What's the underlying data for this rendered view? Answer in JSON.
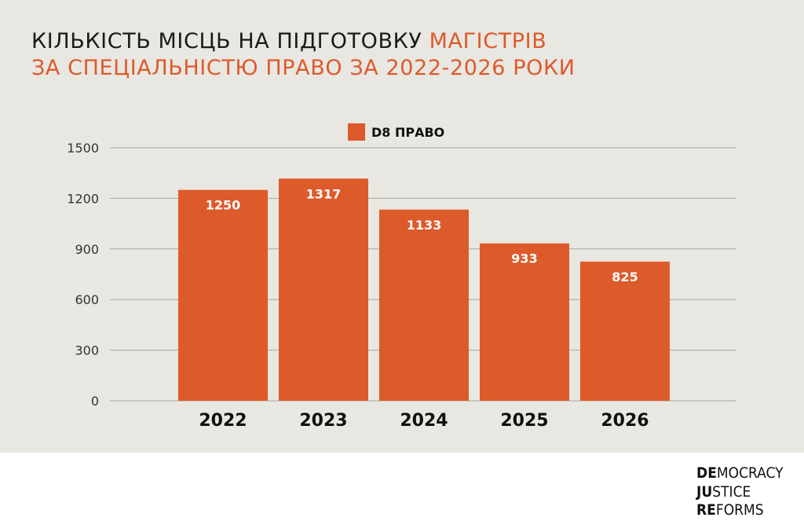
{
  "title": {
    "line1_dark": "Кількість місць на підготовку ",
    "line1_accent": "магістрів",
    "line2_accent": "за спеціальністю право за 2022-2026 роки"
  },
  "chart_data": {
    "type": "bar",
    "categories": [
      "2022",
      "2023",
      "2024",
      "2025",
      "2026"
    ],
    "series": [
      {
        "name": "D8 ПРАВО",
        "values": [
          1250,
          1317,
          1133,
          933,
          825
        ]
      }
    ],
    "ylim": [
      0,
      1500
    ],
    "yticks": [
      0,
      300,
      600,
      900,
      1200,
      1500
    ],
    "grid": true,
    "legend_position": "top-center",
    "data_labels": true,
    "bar_color": "#dd5a2b"
  },
  "colors": {
    "accent": "#dd5a2b",
    "background": "#e9e7e1",
    "text": "#1a1a1a"
  },
  "logo": {
    "line1_bold": "DE",
    "line1_rest": "MOCRACY",
    "line2_bold": "JU",
    "line2_rest": "STICE",
    "line3_bold": "RE",
    "line3_rest": "FORMS"
  }
}
